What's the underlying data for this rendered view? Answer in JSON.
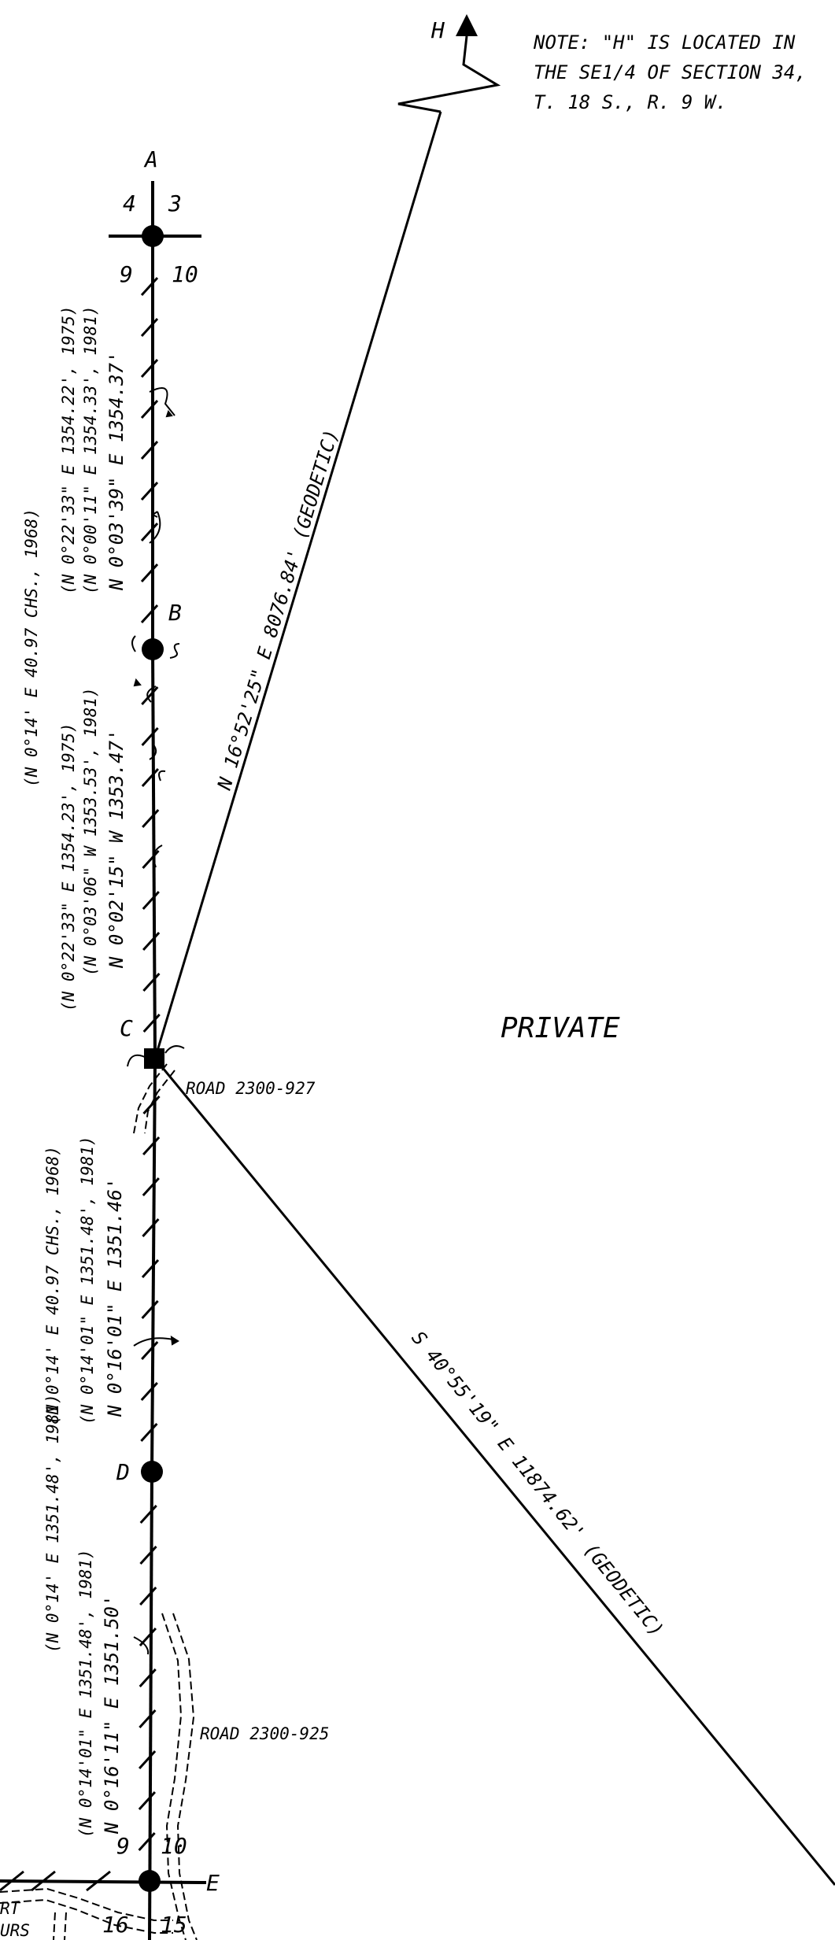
{
  "note": {
    "line1": "NOTE:  \"H\" IS LOCATED IN",
    "line2": "THE SE1/4 OF SECTION 34,",
    "line3": "T. 18 S.,  R. 9 W."
  },
  "points": {
    "H": "H",
    "A": "A",
    "B": "B",
    "C": "C",
    "D": "D",
    "E": "E"
  },
  "section_numbers": {
    "top_left": "4",
    "top_right": "3",
    "upper_left": "9",
    "upper_right": "10",
    "lower_left": "9",
    "lower_right": "10",
    "bottom_left": "16",
    "bottom_right": "15"
  },
  "bearings": {
    "ab_main": "N  0°03'39\"  E   1354.37'",
    "ab_1981": "(N 0°00'11\"  E   1354.33',  1981)",
    "ab_1975": "(N 0°22'33\"  E   1354.22',  1975)",
    "ac_1968": "(N 0°14'  E    40.97 CHS.,  1968)",
    "bc_main": "N  0°02'15\"  W   1353.47'",
    "bc_1981": "(N 0°03'06\" W   1353.53',  1981)",
    "bc_1975": "(N 0°22'33\"  E   1354.23',  1975)",
    "cd_main": "N  0°16'01\"  E   1351.46'",
    "cd_1981": "(N 0°14'01\"  E   1351.48',  1981)",
    "ce_1968": "(N 0°14'  E    40.97 CHS.,  1968)",
    "de_main": "N  0°16'11\"  E   1351.50'",
    "de_1981": "(N 0°14'01\"  E   1351.48',  1981)",
    "de_alt_1981": "(N 0°14'  E   1351.48',  1981)",
    "ch_line": "N 16°52'25\"  E   8076.84'   (GEODETIC)",
    "c_se_line": "S 40°55'19\"  E   11874.62'   (GEODETIC)"
  },
  "area_label": "PRIVATE",
  "roads": {
    "upper": "ROAD  2300-927",
    "lower": "ROAD  2300-925"
  },
  "cutoff_text": {
    "line1": "RT",
    "line2": "URS"
  }
}
